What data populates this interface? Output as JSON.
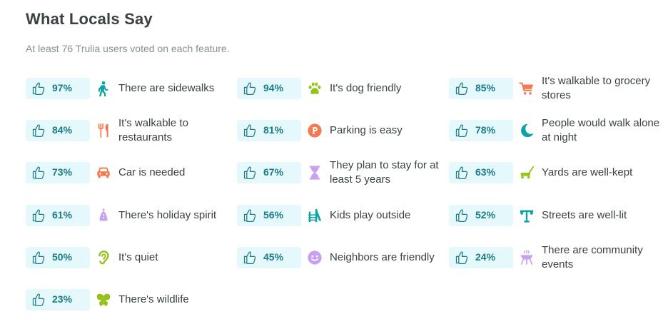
{
  "header": {
    "title": "What Locals Say",
    "subtitle": "At least 76 Trulia users voted on each feature."
  },
  "colors": {
    "pill_bg": "#e5f8fb",
    "percent_text": "#1a7c87",
    "thumb_stroke": "#1a7c87"
  },
  "features": [
    {
      "percent": "97%",
      "label": "There are sidewalks",
      "icon": "walking-person-icon",
      "icon_color": "#0aa3a8"
    },
    {
      "percent": "94%",
      "label": "It's dog friendly",
      "icon": "paw-icon",
      "icon_color": "#94c21a"
    },
    {
      "percent": "85%",
      "label": "It's walkable to grocery stores",
      "icon": "shopping-cart-icon",
      "icon_color": "#f27a4f"
    },
    {
      "percent": "84%",
      "label": "It's walkable to restaurants",
      "icon": "fork-knife-icon",
      "icon_color": "#f27a4f"
    },
    {
      "percent": "81%",
      "label": "Parking is easy",
      "icon": "parking-icon",
      "icon_color": "#f27a4f"
    },
    {
      "percent": "78%",
      "label": "People would walk alone at night",
      "icon": "moon-icon",
      "icon_color": "#0aa3a8"
    },
    {
      "percent": "73%",
      "label": "Car is needed",
      "icon": "car-icon",
      "icon_color": "#f27a4f"
    },
    {
      "percent": "67%",
      "label": "They plan to stay for at least 5 years",
      "icon": "hourglass-icon",
      "icon_color": "#c9a0f0"
    },
    {
      "percent": "63%",
      "label": "Yards are well-kept",
      "icon": "lawnmower-icon",
      "icon_color": "#94c21a"
    },
    {
      "percent": "61%",
      "label": "There's holiday spirit",
      "icon": "holiday-icon",
      "icon_color": "#c9a0f0"
    },
    {
      "percent": "56%",
      "label": "Kids play outside",
      "icon": "slide-icon",
      "icon_color": "#0aa3a8"
    },
    {
      "percent": "52%",
      "label": "Streets are well-lit",
      "icon": "streetlight-icon",
      "icon_color": "#0aa3a8"
    },
    {
      "percent": "50%",
      "label": "It's quiet",
      "icon": "ear-icon",
      "icon_color": "#94c21a"
    },
    {
      "percent": "45%",
      "label": "Neighbors are friendly",
      "icon": "smiley-icon",
      "icon_color": "#c9a0f0"
    },
    {
      "percent": "24%",
      "label": "There are community events",
      "icon": "community-grill-icon",
      "icon_color": "#c9a0f0"
    },
    {
      "percent": "23%",
      "label": "There's wildlife",
      "icon": "butterfly-icon",
      "icon_color": "#94c21a"
    }
  ]
}
